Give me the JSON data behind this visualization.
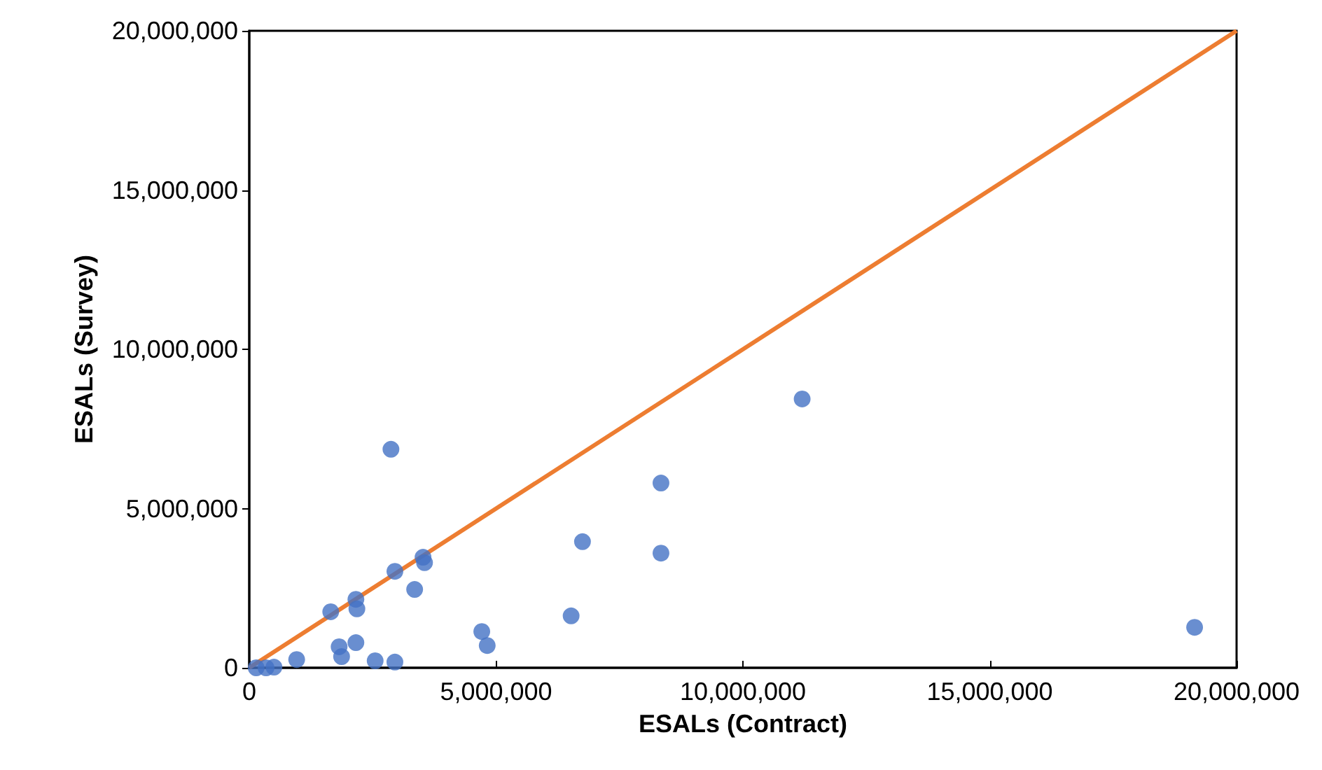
{
  "chart_data": {
    "type": "scatter",
    "xlabel": "ESALs (Contract)",
    "ylabel": "ESALs (Survey)",
    "xlim": [
      0,
      20000000
    ],
    "xticks": [
      {
        "value": 0,
        "label": "0"
      },
      {
        "value": 5000000,
        "label": "5,000,000"
      },
      {
        "value": 10000000,
        "label": "10,000,000"
      },
      {
        "value": 15000000,
        "label": "15,000,000"
      },
      {
        "value": 20000000,
        "label": "20,000,000"
      }
    ],
    "ylim": [
      0,
      20000000
    ],
    "yticks": [
      {
        "value": 0,
        "label": "0"
      },
      {
        "value": 5000000,
        "label": "5,000,000"
      },
      {
        "value": 10000000,
        "label": "10,000,000"
      },
      {
        "value": 15000000,
        "label": "15,000,000"
      },
      {
        "value": 20000000,
        "label": "20,000,000"
      }
    ],
    "grid": false,
    "marker": "circle",
    "series": [
      {
        "color": "#4472c4",
        "x": [
          140000,
          340000,
          500000,
          960000,
          1650000,
          1820000,
          1870000,
          2160000,
          2160000,
          2180000,
          2550000,
          2870000,
          2950000,
          2950000,
          3350000,
          3520000,
          3550000,
          4710000,
          4820000,
          6520000,
          6750000,
          8340000,
          8340000,
          11200000,
          19150000
        ],
        "values": [
          0,
          0,
          20000,
          260000,
          1760000,
          660000,
          350000,
          790000,
          2150000,
          1850000,
          220000,
          6860000,
          180000,
          3030000,
          2460000,
          3470000,
          3300000,
          1140000,
          700000,
          1630000,
          3960000,
          5800000,
          3600000,
          8440000,
          1270000
        ]
      },
      {
        "type": "line",
        "color": "#ed7d31",
        "x": [
          0,
          20000000
        ],
        "values": [
          0,
          20000000
        ],
        "marker": "none",
        "line_style": "solid"
      }
    ]
  }
}
